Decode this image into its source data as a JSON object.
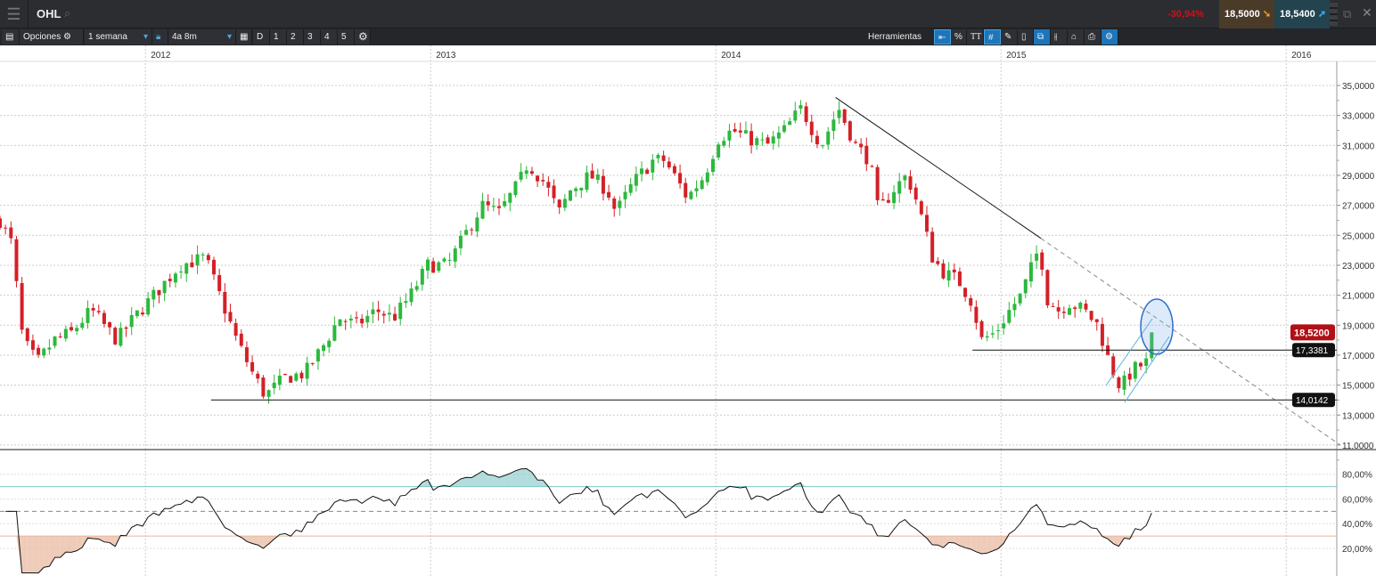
{
  "topbar": {
    "symbol": "OHL",
    "change": "-30,94%",
    "bid": "18,5000",
    "ask": "18,5400"
  },
  "toolbar": {
    "options_label": "Opciones",
    "interval": "1 semana",
    "range": "4a 8m",
    "d": "D",
    "presets": [
      "1",
      "2",
      "3",
      "4",
      "5"
    ],
    "tools_label": "Herramientas",
    "percent": "%",
    "text_tool": "TT"
  },
  "colors": {
    "up": "#2db83d",
    "down": "#d42027",
    "rsi_high": "#7fc7c4",
    "rsi_low": "#e8b79d",
    "price_badge": "#b10f16"
  },
  "chart_data": {
    "type": "candlestick",
    "x_ticks": [
      "2012",
      "2013",
      "2014",
      "2015",
      "2016"
    ],
    "y_ticks": [
      "35,0000",
      "33,0000",
      "31,0000",
      "29,0000",
      "27,0000",
      "25,0000",
      "23,0000",
      "21,0000",
      "19,0000",
      "17,0000",
      "15,0000",
      "13,0000",
      "11,0000"
    ],
    "ylim": [
      11,
      35
    ],
    "close_path": [
      [
        2011.49,
        26
      ],
      [
        2011.53,
        24.5
      ],
      [
        2011.57,
        18
      ],
      [
        2011.62,
        16.5
      ],
      [
        2011.68,
        18
      ],
      [
        2011.74,
        18.5
      ],
      [
        2011.81,
        20
      ],
      [
        2011.9,
        18
      ],
      [
        2011.96,
        19.5
      ],
      [
        2012.03,
        21
      ],
      [
        2012.12,
        23
      ],
      [
        2012.21,
        23.5
      ],
      [
        2012.26,
        21
      ],
      [
        2012.32,
        18
      ],
      [
        2012.37,
        16
      ],
      [
        2012.42,
        14.3
      ],
      [
        2012.49,
        15.5
      ],
      [
        2012.56,
        15.8
      ],
      [
        2012.62,
        17.5
      ],
      [
        2012.68,
        19.5
      ],
      [
        2012.74,
        19
      ],
      [
        2012.81,
        20
      ],
      [
        2012.87,
        19.5
      ],
      [
        2012.93,
        21
      ],
      [
        2012.99,
        23
      ],
      [
        2013.06,
        23
      ],
      [
        2013.12,
        25
      ],
      [
        2013.18,
        27
      ],
      [
        2013.24,
        26.5
      ],
      [
        2013.31,
        28.5
      ],
      [
        2013.34,
        29.8
      ],
      [
        2013.4,
        28.5
      ],
      [
        2013.45,
        26.5
      ],
      [
        2013.49,
        28
      ],
      [
        2013.56,
        29
      ],
      [
        2013.62,
        28
      ],
      [
        2013.65,
        26.5
      ],
      [
        2013.71,
        28.5
      ],
      [
        2013.78,
        30
      ],
      [
        2013.82,
        30
      ],
      [
        2013.87,
        28.5
      ],
      [
        2013.9,
        27.5
      ],
      [
        2013.96,
        29
      ],
      [
        2014.01,
        31.5
      ],
      [
        2014.06,
        32
      ],
      [
        2014.11,
        31.5
      ],
      [
        2014.18,
        31
      ],
      [
        2014.24,
        32
      ],
      [
        2014.3,
        33.5
      ],
      [
        2014.34,
        32
      ],
      [
        2014.37,
        31
      ],
      [
        2014.43,
        33.5
      ],
      [
        2014.49,
        31
      ],
      [
        2014.54,
        30
      ],
      [
        2014.57,
        26.5
      ],
      [
        2014.62,
        28
      ],
      [
        2014.67,
        29
      ],
      [
        2014.71,
        27
      ],
      [
        2014.76,
        23.5
      ],
      [
        2014.8,
        22.5
      ],
      [
        2014.85,
        22
      ],
      [
        2014.9,
        20.5
      ],
      [
        2014.93,
        18
      ],
      [
        2014.98,
        18.5
      ],
      [
        2015.03,
        20
      ],
      [
        2015.07,
        21
      ],
      [
        2015.12,
        23.5
      ],
      [
        2015.14,
        24.5
      ],
      [
        2015.15,
        21
      ],
      [
        2015.2,
        20
      ],
      [
        2015.24,
        20.5
      ],
      [
        2015.29,
        20
      ],
      [
        2015.34,
        19
      ],
      [
        2015.38,
        16.5
      ],
      [
        2015.42,
        14.8
      ],
      [
        2015.46,
        16
      ],
      [
        2015.51,
        16.5
      ],
      [
        2015.53,
        18.52
      ]
    ],
    "last_price": "18,5200",
    "levels": [
      {
        "value": 17.3381,
        "label": "17,3381",
        "from": 2014.9
      },
      {
        "value": 14.0142,
        "label": "14,0142",
        "from": 2012.23
      }
    ],
    "trendline": {
      "from": [
        2014.42,
        34.2
      ],
      "to": [
        2015.14,
        24.8
      ],
      "extend_to": [
        2016.19,
        11
      ]
    },
    "rsi": {
      "y_ticks": [
        "80,00%",
        "60,00%",
        "40,00%",
        "20,00%"
      ],
      "upper": 70,
      "lower": 30,
      "mid": 50,
      "period": 14
    }
  }
}
